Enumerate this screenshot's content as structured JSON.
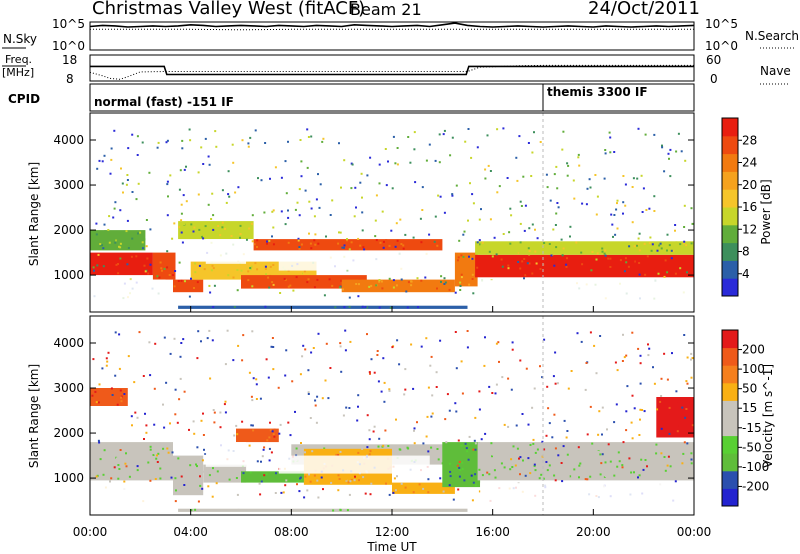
{
  "header": {
    "title": "Christmas Valley West (fitACF)",
    "beam": "Beam 21",
    "date": "24/Oct/2011"
  },
  "nsky_panel": {
    "left_label": "N.Sky",
    "left_ticks": [
      "10^5",
      "10^0"
    ],
    "right_ticks": [
      "10^5",
      "10^0"
    ],
    "right_label": "N.Search"
  },
  "freq_panel": {
    "left_label_top": "Freq.",
    "left_label_bottom": "[MHz]",
    "left_ticks": [
      "18",
      "8"
    ],
    "right_ticks": [
      "60",
      "0"
    ],
    "right_label": "Nave"
  },
  "cpid_panel": {
    "label": "CPID",
    "modes": [
      {
        "text": "normal (fast) -151 IF",
        "start_hour": 0
      },
      {
        "text": "themis 3300 IF",
        "start_hour": 18
      }
    ]
  },
  "colors": {
    "power": [
      "#2a2ad8",
      "#2b5fa8",
      "#3d8f5c",
      "#61ad3a",
      "#c7d62a",
      "#f5c52a",
      "#f5a21e",
      "#f27a10",
      "#ee4a10",
      "#e81e10"
    ],
    "velocity": [
      "#2323d0",
      "#2b4fae",
      "#5fbd3a",
      "#58d033",
      "#c8c4bc",
      "#c8c4bc",
      "#f9b014",
      "#f57f1d",
      "#ef5a1a",
      "#e41a1a"
    ]
  },
  "chart_data": [
    {
      "type": "line",
      "name": "nsky",
      "x": [
        0,
        0.5,
        1,
        1.5,
        2,
        2.5,
        3,
        3.5,
        4,
        4.5,
        5,
        5.5,
        6,
        6.5,
        7,
        7.5,
        8,
        8.5,
        9,
        9.5,
        10,
        10.5,
        11,
        11.5,
        12,
        12.5,
        13,
        13.5,
        14,
        14.5,
        15,
        15.5,
        16,
        16.5,
        17,
        17.5,
        18,
        18.5,
        19,
        19.5,
        20,
        20.5,
        21,
        21.5,
        22,
        22.5,
        23,
        23.5,
        24
      ],
      "values": [
        4.2,
        4.4,
        4.3,
        4.1,
        4.2,
        4.3,
        4.2,
        4.3,
        4.5,
        4.4,
        4.2,
        4.3,
        4.4,
        4.3,
        4.2,
        4.4,
        4.3,
        4.2,
        4.4,
        4.3,
        4.2,
        4.5,
        4.4,
        4.3,
        4.2,
        4.3,
        4.4,
        4.2,
        4.5,
        4.8,
        4.4,
        4.2,
        4.1,
        4.2,
        4.3,
        4.2,
        4.1,
        4.2,
        4.3,
        4.2,
        4.1,
        4.3,
        4.2,
        4.1,
        4.2,
        4.3,
        4.2,
        4.3,
        4.4
      ],
      "ylim": [
        0,
        5
      ]
    },
    {
      "type": "line",
      "name": "nsearch",
      "x": [
        0,
        2,
        4,
        6,
        8,
        10,
        12,
        14,
        16,
        18,
        20,
        22,
        24
      ],
      "values": [
        3.7,
        3.7,
        3.7,
        3.6,
        3.7,
        3.7,
        3.7,
        3.7,
        3.7,
        3.7,
        3.7,
        3.7,
        3.7
      ],
      "ylim": [
        0,
        5
      ]
    },
    {
      "type": "line",
      "name": "frequency",
      "x": [
        0,
        2.95,
        3.05,
        14.95,
        15.05,
        24
      ],
      "values": [
        13.6,
        13.6,
        10.5,
        10.5,
        13.6,
        13.6
      ],
      "ylim": [
        8,
        18
      ]
    },
    {
      "type": "line",
      "name": "nave",
      "x": [
        0,
        0.5,
        0.8,
        1.2,
        1.5,
        2,
        3,
        6,
        10,
        14,
        15,
        15.5,
        16.5,
        17,
        18,
        20,
        24
      ],
      "values": [
        20,
        12,
        6,
        4,
        10,
        21,
        22,
        22,
        22,
        22,
        22,
        32,
        34,
        35,
        36,
        36,
        36
      ],
      "ylim": [
        0,
        60
      ]
    },
    {
      "type": "heatmap",
      "name": "power",
      "xlabel": "",
      "ylabel": "Slant Range [km]",
      "xlim": [
        0,
        24
      ],
      "ylim": [
        180,
        4600
      ],
      "yticks": [
        1000,
        2000,
        3000,
        4000
      ],
      "colorbar_label": "Power [dB]",
      "colorbar_ticks": [
        "4",
        "8",
        "12",
        "16",
        "20",
        "24",
        "28"
      ],
      "bands": [
        {
          "x": [
            0,
            2.5
          ],
          "y": [
            1000,
            1500
          ],
          "level": 9
        },
        {
          "x": [
            2.5,
            3.4
          ],
          "y": [
            900,
            1500
          ],
          "level": 8
        },
        {
          "x": [
            3.3,
            4.5
          ],
          "y": [
            620,
            900
          ],
          "level": 8
        },
        {
          "x": [
            4.0,
            9.0
          ],
          "y": [
            900,
            1300
          ],
          "level": 5
        },
        {
          "x": [
            6.0,
            11.0
          ],
          "y": [
            700,
            1000
          ],
          "level": 8
        },
        {
          "x": [
            10.0,
            14.5
          ],
          "y": [
            620,
            900
          ],
          "level": 7
        },
        {
          "x": [
            6.5,
            14.0
          ],
          "y": [
            1550,
            1800
          ],
          "level": 8
        },
        {
          "x": [
            3.5,
            6.5
          ],
          "y": [
            1800,
            2200
          ],
          "level": 4
        },
        {
          "x": [
            14.5,
            15.4
          ],
          "y": [
            750,
            1500
          ],
          "level": 7
        },
        {
          "x": [
            15.3,
            24.0
          ],
          "y": [
            950,
            1450
          ],
          "level": 9
        },
        {
          "x": [
            15.3,
            24.0
          ],
          "y": [
            1450,
            1750
          ],
          "level": 4
        },
        {
          "x": [
            0,
            2.2
          ],
          "y": [
            1550,
            2000
          ],
          "level": 3
        },
        {
          "x": [
            3.5,
            15.0
          ],
          "y": [
            250,
            320
          ],
          "level": 1
        }
      ]
    },
    {
      "type": "heatmap",
      "name": "velocity",
      "xlabel": "Time UT",
      "ylabel": "Slant Range [km]",
      "xlim": [
        0,
        24
      ],
      "ylim": [
        180,
        4600
      ],
      "yticks": [
        1000,
        2000,
        3000,
        4000
      ],
      "xticks": [
        "00:00",
        "04:00",
        "08:00",
        "12:00",
        "16:00",
        "20:00",
        "00:00"
      ],
      "colorbar_label": "Velocity [m s^-1]",
      "colorbar_ticks": [
        "-200",
        "-100",
        "-50",
        "-15",
        "15",
        "50",
        "100",
        "200"
      ],
      "bands": [
        {
          "x": [
            0,
            3.3
          ],
          "y": [
            950,
            1800
          ],
          "level": 4
        },
        {
          "x": [
            3.3,
            4.5
          ],
          "y": [
            620,
            1500
          ],
          "level": 4
        },
        {
          "x": [
            4.5,
            6.2
          ],
          "y": [
            900,
            1300
          ],
          "level": 4
        },
        {
          "x": [
            6.0,
            9.0
          ],
          "y": [
            900,
            1150
          ],
          "level": 2
        },
        {
          "x": [
            8.0,
            14.5
          ],
          "y": [
            1300,
            1750
          ],
          "level": 4
        },
        {
          "x": [
            8.5,
            12.0
          ],
          "y": [
            850,
            1650
          ],
          "level": 6
        },
        {
          "x": [
            12.0,
            14.5
          ],
          "y": [
            650,
            900
          ],
          "level": 6
        },
        {
          "x": [
            14.0,
            15.5
          ],
          "y": [
            800,
            1800
          ],
          "level": 2
        },
        {
          "x": [
            15.4,
            24.0
          ],
          "y": [
            950,
            1800
          ],
          "level": 4
        },
        {
          "x": [
            0,
            1.5
          ],
          "y": [
            2600,
            3000
          ],
          "level": 8
        },
        {
          "x": [
            5.8,
            7.5
          ],
          "y": [
            1800,
            2100
          ],
          "level": 8
        },
        {
          "x": [
            22.5,
            24.0
          ],
          "y": [
            1900,
            2800
          ],
          "level": 9
        },
        {
          "x": [
            3.5,
            15.0
          ],
          "y": [
            250,
            320
          ],
          "level": 4
        }
      ]
    }
  ]
}
